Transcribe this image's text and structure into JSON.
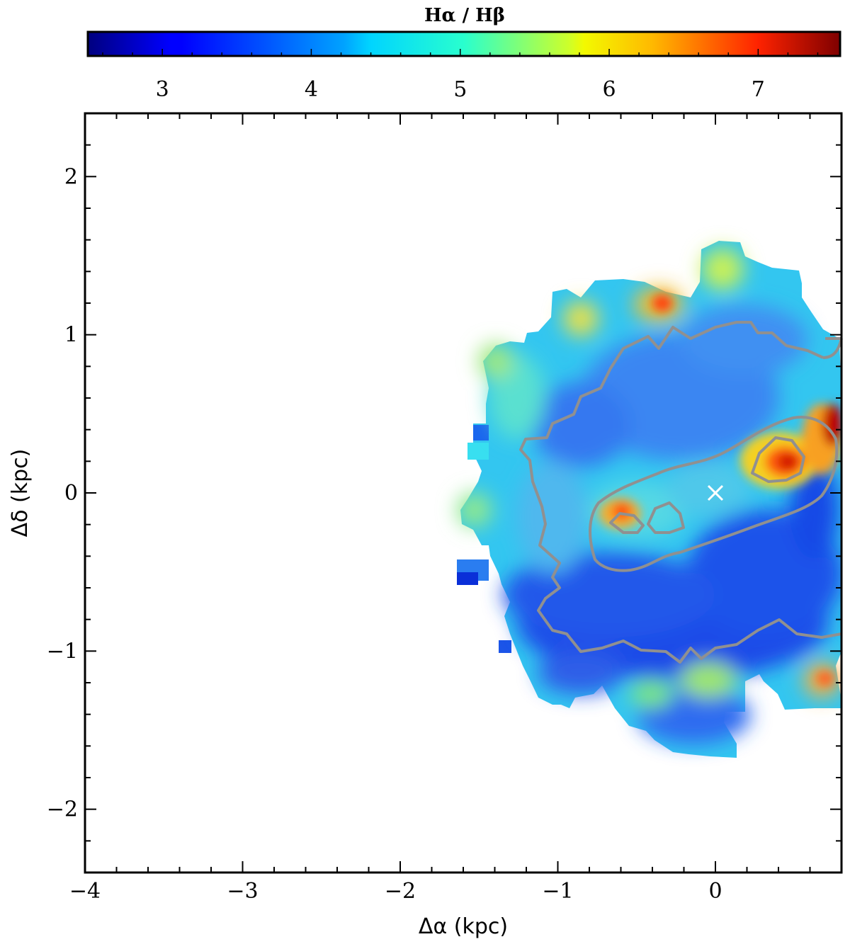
{
  "chart_data": {
    "type": "heatmap",
    "colorbar": {
      "title": "Hα / Hβ",
      "colormap": "jet",
      "range": [
        2.5,
        7.55
      ],
      "ticks": [
        3,
        4,
        5,
        6,
        7
      ],
      "tick_labels": [
        "3",
        "4",
        "5",
        "6",
        "7"
      ],
      "placement": "top"
    },
    "x_axis": {
      "label": "Δα (kpc)",
      "range": [
        -4.0,
        0.8
      ],
      "ticks": [
        -4,
        -3,
        -2,
        -1,
        0
      ],
      "tick_labels": [
        "−4",
        "−3",
        "−2",
        "−1",
        "0"
      ]
    },
    "y_axis": {
      "label": "Δδ (kpc)",
      "range": [
        -2.4,
        2.4
      ],
      "ticks": [
        -2,
        -1,
        0,
        1,
        2
      ],
      "tick_labels": [
        "−2",
        "−1",
        "0",
        "1",
        "2"
      ]
    },
    "grid": false,
    "center_marker": {
      "symbol": "×",
      "x": 0.0,
      "y": 0.0,
      "color": "#ffffff"
    },
    "contour_color": "#909090",
    "map_extent": {
      "x": [
        -1.55,
        0.8
      ],
      "y": [
        -1.65,
        1.6
      ]
    },
    "features": [
      {
        "description": "high ratio knot",
        "x": 0.45,
        "y": 0.2,
        "value": 6.8
      },
      {
        "description": "high ratio knot",
        "x": -0.6,
        "y": -0.15,
        "value": 6.0
      },
      {
        "description": "high ratio edge",
        "x": 0.75,
        "y": 0.4,
        "value": 7.3
      },
      {
        "description": "high ratio edge",
        "x": -0.35,
        "y": 1.2,
        "value": 6.5
      },
      {
        "description": "low ratio region",
        "x": -0.2,
        "y": -0.85,
        "value": 3.0
      }
    ]
  }
}
